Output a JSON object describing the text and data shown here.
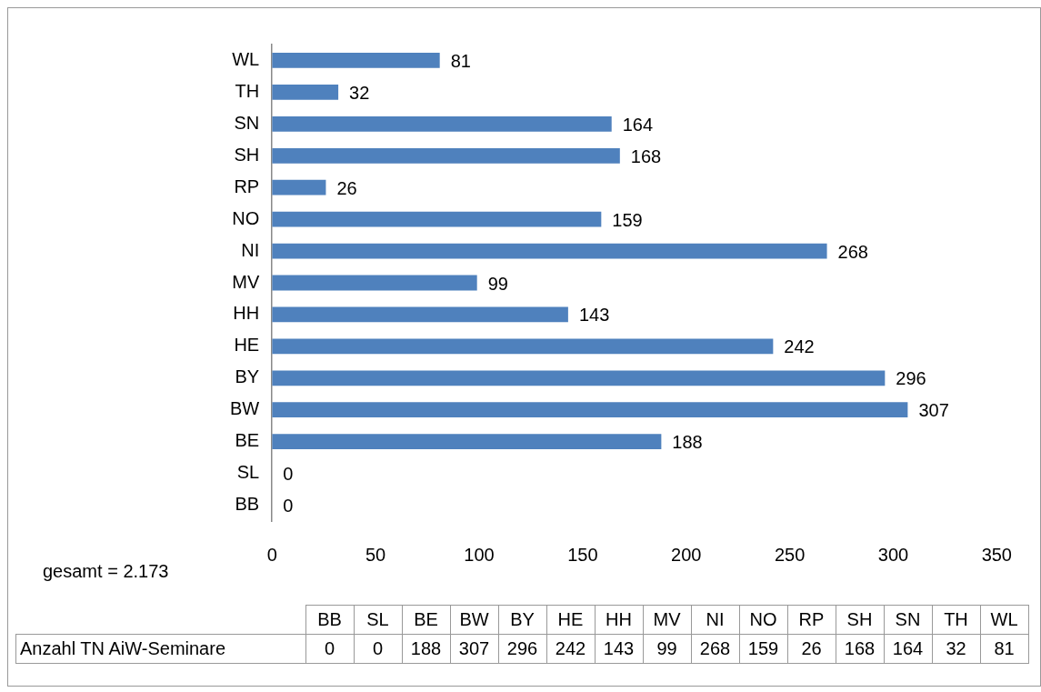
{
  "chart_data": [
    {
      "type": "bar",
      "orientation": "horizontal",
      "categories": [
        "WL",
        "TH",
        "SN",
        "SH",
        "RP",
        "NO",
        "NI",
        "MV",
        "HH",
        "HE",
        "BY",
        "BW",
        "BE",
        "SL",
        "BB"
      ],
      "series": [
        {
          "color": "#4f81bd",
          "values": [
            81,
            32,
            164,
            168,
            26,
            159,
            268,
            99,
            143,
            242,
            296,
            307,
            188,
            0,
            0
          ]
        }
      ],
      "xlim": [
        0,
        350
      ],
      "xticks": [
        0,
        50,
        100,
        150,
        200,
        250,
        300,
        350
      ],
      "grid": false,
      "legend": false,
      "data_labels": true,
      "annotations": [
        "gesamt = 2.173"
      ]
    },
    {
      "type": "other",
      "categories": [
        "BB",
        "SL",
        "BE",
        "BW",
        "BY",
        "HE",
        "HH",
        "MV",
        "NI",
        "NO",
        "RP",
        "SH",
        "SN",
        "TH",
        "WL"
      ],
      "series": [
        {
          "name": "Anzahl TN AiW-Seminare",
          "values": [
            0,
            0,
            188,
            307,
            296,
            242,
            143,
            99,
            268,
            159,
            26,
            168,
            164,
            32,
            81
          ]
        }
      ],
      "data_labels": true
    }
  ]
}
